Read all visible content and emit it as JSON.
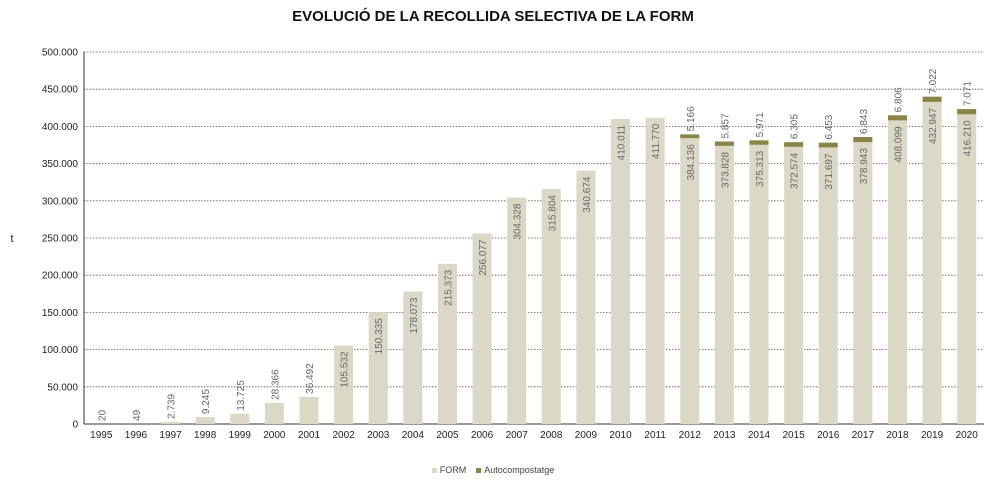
{
  "chart_data": {
    "type": "bar",
    "stacked": true,
    "title": "EVOLUCIÓ DE LA RECOLLIDA SELECTIVA DE LA FORM",
    "xlabel": "",
    "ylabel": "t",
    "ylim": [
      0,
      500000
    ],
    "yticks": [
      0,
      50000,
      100000,
      150000,
      200000,
      250000,
      300000,
      350000,
      400000,
      450000,
      500000
    ],
    "ytick_labels": [
      "0",
      "50.000",
      "100.000",
      "150.000",
      "200.000",
      "250.000",
      "300.000",
      "350.000",
      "400.000",
      "450.000",
      "500.000"
    ],
    "grid": true,
    "legend_position": "bottom-center",
    "categories": [
      "1995",
      "1996",
      "1997",
      "1998",
      "1999",
      "2000",
      "2001",
      "2002",
      "2003",
      "2004",
      "2005",
      "2006",
      "2007",
      "2008",
      "2009",
      "2010",
      "2011",
      "2012",
      "2013",
      "2014",
      "2015",
      "2016",
      "2017",
      "2018",
      "2019",
      "2020"
    ],
    "series": [
      {
        "name": "FORM",
        "color": "#dcd8c6",
        "values": [
          20,
          49,
          2739,
          9245,
          13725,
          28366,
          36492,
          105532,
          150335,
          178073,
          215373,
          256077,
          304328,
          315804,
          340674,
          410011,
          411770,
          384136,
          373828,
          375313,
          372574,
          371697,
          378943,
          408099,
          432947,
          416210
        ],
        "labels": [
          "20",
          "49",
          "2.739",
          "9.245",
          "13.725",
          "28.366",
          "36.492",
          "105.532",
          "150.335",
          "178.073",
          "215.373",
          "256.077",
          "304.328",
          "315.804",
          "340.674",
          "410.011",
          "411.770",
          "384.136",
          "373.828",
          "375.313",
          "372.574",
          "371.697",
          "378.943",
          "408.099",
          "432.947",
          "416.210"
        ]
      },
      {
        "name": "Autocompostatge",
        "color": "#8a8546",
        "values": [
          0,
          0,
          0,
          0,
          0,
          0,
          0,
          0,
          0,
          0,
          0,
          0,
          0,
          0,
          0,
          0,
          0,
          5166,
          5857,
          5971,
          6305,
          6453,
          6843,
          6806,
          7022,
          7071
        ],
        "labels": [
          "",
          "",
          "",
          "",
          "",
          "",
          "",
          "",
          "",
          "",
          "",
          "",
          "",
          "",
          "",
          "",
          "",
          "5.166",
          "5.857",
          "5.971",
          "6.305",
          "6.453",
          "6.843",
          "6.806",
          "7.022",
          "7.071"
        ]
      }
    ]
  }
}
